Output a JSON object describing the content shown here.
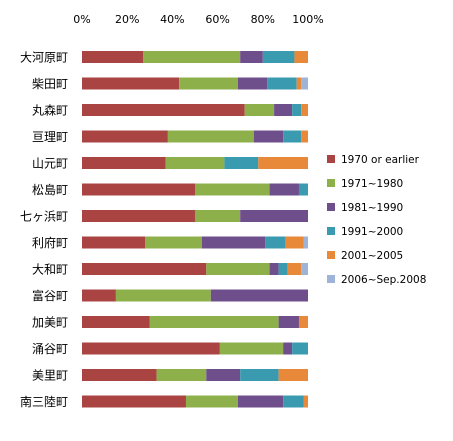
{
  "chart_data": {
    "type": "bar",
    "stacked": true,
    "orientation": "horizontal",
    "xlim": [
      0,
      100
    ],
    "x_ticks": [
      "0%",
      "20%",
      "40%",
      "60%",
      "80%",
      "100%"
    ],
    "x_axis_position": "top",
    "grid": false,
    "legend_position": "right",
    "categories": [
      "大河原町",
      "柴田町",
      "丸森町",
      "亘理町",
      "山元町",
      "松島町",
      "七ヶ浜町",
      "利府町",
      "大和町",
      "富谷町",
      "加美町",
      "涌谷町",
      "美里町",
      "南三陸町"
    ],
    "series": [
      {
        "name": "1970 or earlier",
        "color": "#a94442",
        "values": [
          27,
          43,
          72,
          38,
          37,
          50,
          50,
          28,
          55,
          15,
          30,
          61,
          33,
          46
        ]
      },
      {
        "name": "1971~1980",
        "color": "#8db04b",
        "values": [
          43,
          26,
          13,
          38,
          26,
          33,
          20,
          25,
          28,
          42,
          57,
          28,
          22,
          23
        ]
      },
      {
        "name": "1981~1990",
        "color": "#6f4e8c",
        "values": [
          10,
          13,
          8,
          13,
          0,
          13,
          30,
          28,
          4,
          43,
          9,
          4,
          15,
          20
        ]
      },
      {
        "name": "1991~2000",
        "color": "#3a9bb0",
        "values": [
          14,
          13,
          4,
          8,
          15,
          4,
          0,
          9,
          4,
          0,
          0,
          7,
          17,
          9
        ]
      },
      {
        "name": "2001~2005",
        "color": "#e8893a",
        "values": [
          6,
          2,
          3,
          3,
          22,
          0,
          0,
          8,
          6,
          0,
          4,
          0,
          13,
          2
        ]
      },
      {
        "name": "2006~Sep.2008",
        "color": "#9db3d8",
        "values": [
          0,
          3,
          0,
          0,
          0,
          0,
          0,
          2,
          3,
          0,
          0,
          0,
          0,
          0
        ]
      }
    ]
  }
}
